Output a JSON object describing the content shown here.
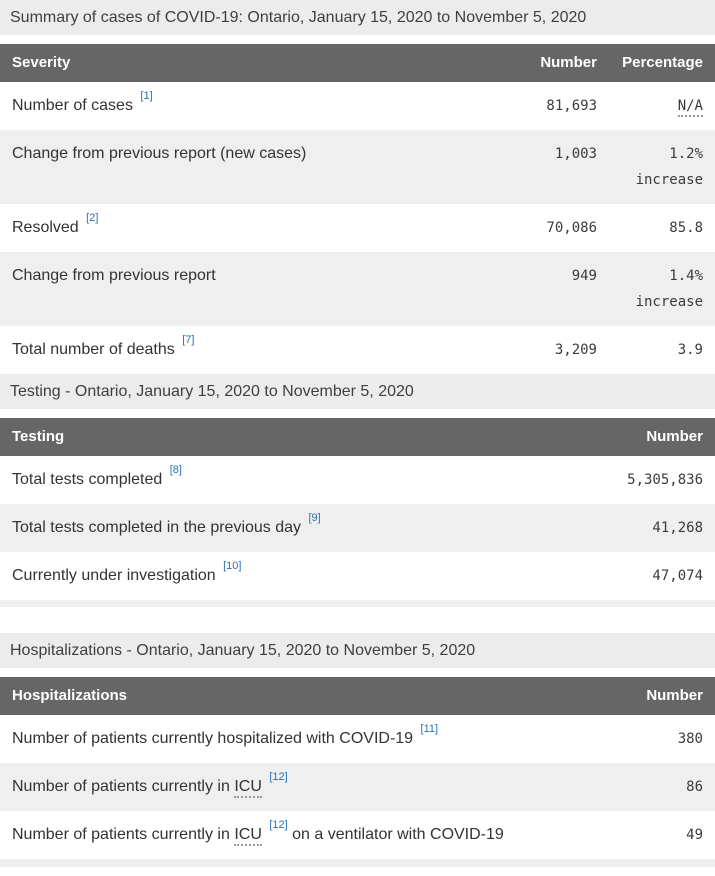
{
  "colors": {
    "header_bg": "#666666",
    "shaded_row_bg": "#efefef",
    "caption_band_bg": "#ececec",
    "footnote_link_blue": "#2b71b8",
    "body_text": "#333333"
  },
  "severity_table": {
    "caption": "Summary of cases of COVID-19: Ontario, January 15, 2020 to November 5, 2020",
    "columns": [
      "Severity",
      "Number",
      "Percentage"
    ],
    "rows": [
      {
        "label": "Number of cases",
        "footnote": "[1]",
        "number": "81,693",
        "pct": "N/A",
        "pct_abbr": true,
        "shaded": false
      },
      {
        "label": "Change from previous report (new cases)",
        "number": "1,003",
        "pct": "1.2%",
        "pct_line2": "increase",
        "shaded": true
      },
      {
        "label": "Resolved",
        "footnote": "[2]",
        "number": "70,086",
        "pct": "85.8",
        "shaded": false
      },
      {
        "label": "Change from previous report",
        "number": "949",
        "pct": "1.4%",
        "pct_line2": "increase",
        "shaded": true
      },
      {
        "label": "Total number of deaths",
        "footnote": "[7]",
        "number": "3,209",
        "pct": "3.9",
        "shaded": false
      }
    ]
  },
  "testing_table": {
    "caption": "Testing - Ontario, January 15, 2020 to November 5, 2020",
    "columns": [
      "Testing",
      "Number"
    ],
    "rows": [
      {
        "label": "Total tests completed",
        "footnote": "[8]",
        "number": "5,305,836",
        "shaded": false
      },
      {
        "label": "Total tests completed in the previous day",
        "footnote": "[9]",
        "number": "41,268",
        "shaded": true
      },
      {
        "label": "Currently under investigation",
        "footnote": "[10]",
        "number": "47,074",
        "shaded": false
      }
    ]
  },
  "hospitalizations_table": {
    "caption": "Hospitalizations - Ontario, January 15, 2020 to November 5, 2020",
    "columns": [
      "Hospitalizations",
      "Number"
    ],
    "rows": [
      {
        "label": "Number of patients currently hospitalized with COVID-19",
        "footnote": "[11]",
        "number": "380",
        "shaded": false
      },
      {
        "label": "Number of patients currently in",
        "abbr": "ICU",
        "footnote": "[12]",
        "number": "86",
        "shaded": true
      },
      {
        "label": "Number of patients currently in",
        "abbr": "ICU",
        "footnote": "[12]",
        "label_after": "on a ventilator with COVID-19",
        "number": "49",
        "shaded": false
      }
    ]
  }
}
